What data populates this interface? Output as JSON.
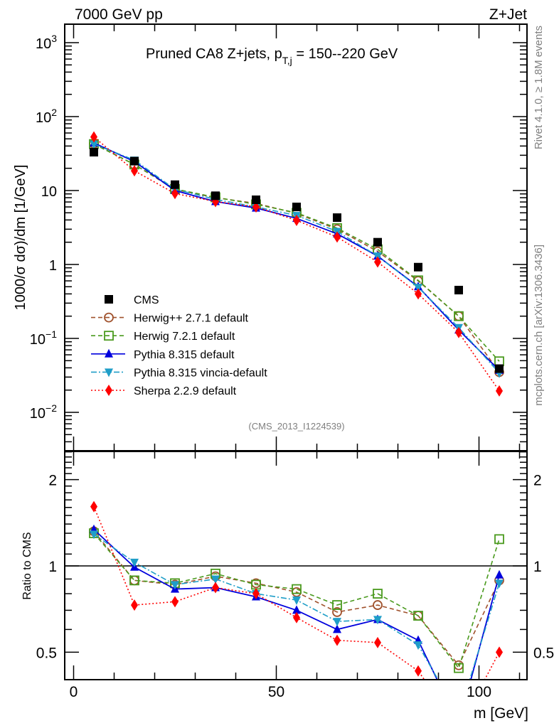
{
  "header": {
    "left": "7000 GeV pp",
    "right": "Z+Jet"
  },
  "side_labels": {
    "rivet": "Rivet 4.1.0, ≥ 1.8M events",
    "mcplots": "mcplots.cern.ch [arXiv:1306.3436]"
  },
  "watermark": "(CMS_2013_I1224539)",
  "chart_data": [
    {
      "type": "scatter",
      "panel": "main",
      "title": "Pruned CA8 Z+jets, p_{T,j} = 150--220 GeV",
      "title_main": "Pruned CA8 Z+jets, p",
      "title_sub": "T,j",
      "title_tail": " = 150--220 GeV",
      "ylabel": "1000/σ  dσ)/dm [1/GeV]",
      "xlabel": "",
      "yscale": "log",
      "ylim": [
        0.003,
        1800
      ],
      "xlim": [
        -1,
        112
      ],
      "yticks": [
        {
          "v": 1000,
          "base": "10",
          "exp": "3"
        },
        {
          "v": 100,
          "base": "10",
          "exp": "2"
        },
        {
          "v": 10,
          "base": "10",
          "exp": ""
        },
        {
          "v": 1,
          "base": "1",
          "exp": ""
        },
        {
          "v": 0.1,
          "base": "10",
          "exp": "−1"
        },
        {
          "v": 0.01,
          "base": "10",
          "exp": "−2"
        }
      ],
      "x": [
        5,
        15,
        25,
        35,
        45,
        55,
        65,
        75,
        85,
        95,
        105
      ],
      "legend_position": "bottom-left",
      "series": [
        {
          "name": "CMS",
          "key": "cms",
          "color": "#000000",
          "marker": "square",
          "line": "none",
          "values": [
            33,
            25,
            12,
            8.5,
            7.5,
            6.0,
            4.3,
            2.0,
            0.92,
            0.45,
            0.039
          ]
        },
        {
          "name": "Herwig++ 2.7.1 default",
          "key": "herwigpp",
          "color": "#a0522d",
          "marker": "circle-open",
          "line": "dashed",
          "values": [
            43,
            22.5,
            10.3,
            8.0,
            6.7,
            4.9,
            3.0,
            1.5,
            0.6,
            0.2,
            0.035
          ]
        },
        {
          "name": "Herwig 7.2.1 default",
          "key": "herwig7",
          "color": "#4a9a1e",
          "marker": "square-open",
          "line": "dashed",
          "values": [
            42.5,
            22.5,
            10.5,
            8.1,
            6.5,
            5.0,
            3.1,
            1.6,
            0.61,
            0.2,
            0.049
          ]
        },
        {
          "name": "Pythia 8.315 default",
          "key": "pythia",
          "color": "#0000dd",
          "marker": "triangle-up",
          "line": "solid",
          "values": [
            44,
            24.7,
            10.0,
            7.1,
            5.8,
            4.2,
            2.6,
            1.3,
            0.5,
            0.13,
            0.037
          ]
        },
        {
          "name": "Pythia 8.315 vincia-default",
          "key": "vincia",
          "color": "#1f9ec8",
          "marker": "triangle-down",
          "line": "dashdot",
          "values": [
            42.5,
            25.8,
            10.4,
            7.6,
            6.0,
            4.6,
            2.8,
            1.3,
            0.49,
            0.14,
            0.034
          ]
        },
        {
          "name": "Sherpa 2.2.9 default",
          "key": "sherpa",
          "color": "#ff0000",
          "marker": "diamond",
          "line": "dotted",
          "values": [
            53,
            18.5,
            9.1,
            7.1,
            6.0,
            3.95,
            2.35,
            1.08,
            0.4,
            0.12,
            0.0195
          ]
        }
      ]
    },
    {
      "type": "line",
      "panel": "ratio",
      "ylabel": "Ratio to CMS",
      "xlabel": "m [GeV]",
      "yscale": "log",
      "ylim": [
        0.4,
        2.5
      ],
      "xlim": [
        -1,
        112
      ],
      "yticks": [
        {
          "v": 2,
          "label": "2"
        },
        {
          "v": 1,
          "label": "1"
        },
        {
          "v": 0.5,
          "label": "0.5"
        }
      ],
      "xticks": [
        {
          "v": 0,
          "label": "0"
        },
        {
          "v": 50,
          "label": "50"
        },
        {
          "v": 100,
          "label": "100"
        }
      ],
      "reference_line": 1,
      "x": [
        5,
        15,
        25,
        35,
        45,
        55,
        65,
        75,
        85,
        95,
        105
      ],
      "series": [
        {
          "name": "Herwig++ 2.7.1 default",
          "key": "herwigpp",
          "values": [
            1.32,
            0.89,
            0.86,
            0.92,
            0.87,
            0.81,
            0.69,
            0.73,
            0.67,
            0.45,
            0.89
          ]
        },
        {
          "name": "Herwig 7.2.1 default",
          "key": "herwig7",
          "values": [
            1.3,
            0.89,
            0.87,
            0.94,
            0.86,
            0.83,
            0.73,
            0.8,
            0.67,
            0.44,
            1.24
          ]
        },
        {
          "name": "Pythia 8.315 default",
          "key": "pythia",
          "values": [
            1.34,
            0.99,
            0.83,
            0.84,
            0.78,
            0.7,
            0.6,
            0.65,
            0.55,
            0.28,
            0.93
          ]
        },
        {
          "name": "Pythia 8.315 vincia-default",
          "key": "vincia",
          "values": [
            1.29,
            1.03,
            0.86,
            0.9,
            0.8,
            0.76,
            0.64,
            0.65,
            0.53,
            0.3,
            0.87
          ]
        },
        {
          "name": "Sherpa 2.2.9 default",
          "key": "sherpa",
          "values": [
            1.61,
            0.73,
            0.75,
            0.84,
            0.8,
            0.66,
            0.55,
            0.54,
            0.43,
            0.27,
            0.5
          ]
        }
      ]
    }
  ]
}
